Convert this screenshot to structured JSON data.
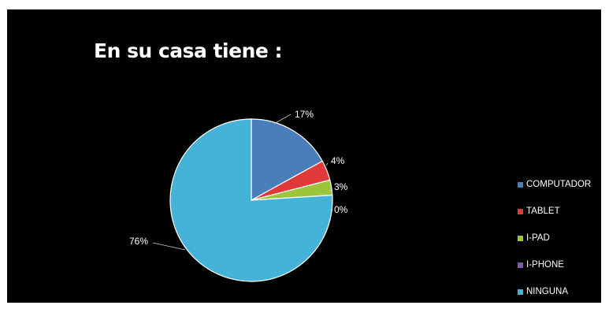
{
  "chart_data": {
    "type": "pie",
    "title": "En su casa tiene :",
    "categories": [
      "COMPUTADOR",
      "TABLET",
      "I-PAD",
      "I-PHONE",
      "NINGUNA"
    ],
    "values": [
      17,
      4,
      3,
      0,
      76
    ],
    "data_labels": [
      "17%",
      "4%",
      "3%",
      "0%",
      "76%"
    ],
    "colors": [
      "#4a7ebb",
      "#e0393a",
      "#9bc53a",
      "#7b5aa6",
      "#45b3d8"
    ],
    "legend_position": "right",
    "grid": false
  },
  "background": "#000000"
}
